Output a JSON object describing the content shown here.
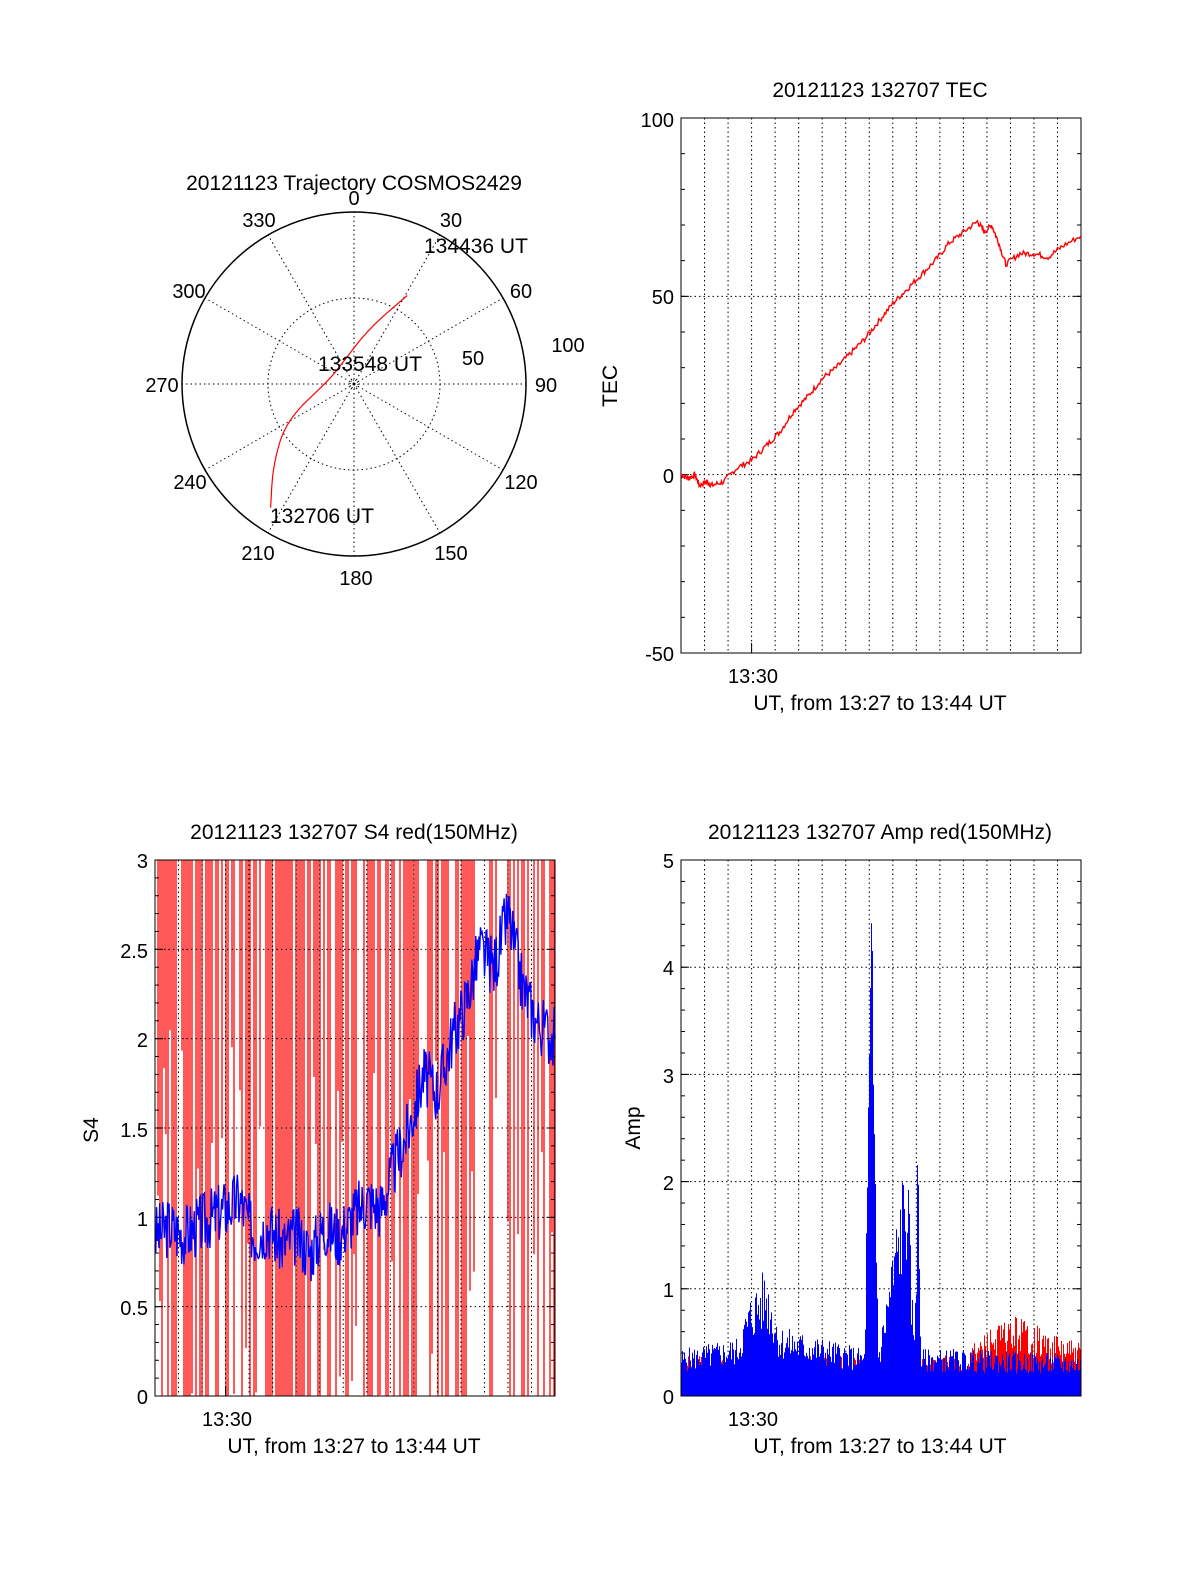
{
  "colors": {
    "red": "#ff0000",
    "blue": "#0000ff",
    "axis": "#000000",
    "grid": "#000000"
  },
  "chart_data": [
    {
      "type": "polar",
      "title": "20121123 Trajectory COSMOS2429",
      "azimuth_labels": [
        "0",
        "30",
        "60",
        "90",
        "120",
        "150",
        "180",
        "210",
        "240",
        "270",
        "300",
        "330"
      ],
      "radial_labels": [
        "50",
        "100"
      ],
      "track": {
        "color": "red",
        "points": [
          {
            "az": 214,
            "el": 12
          },
          {
            "az": 225,
            "el": 30
          },
          {
            "az": 242,
            "el": 50
          },
          {
            "az": 280,
            "el": 77
          },
          {
            "az": 335,
            "el": 77
          },
          {
            "az": 15,
            "el": 60
          },
          {
            "az": 31,
            "el": 36
          }
        ]
      },
      "annotations": [
        {
          "text": "134436 UT",
          "az": 31,
          "el": 36
        },
        {
          "text": "133548 UT",
          "az": 300,
          "el": 84
        },
        {
          "text": "132706 UT",
          "az": 214,
          "el": 12
        }
      ]
    },
    {
      "type": "line",
      "title": "20121123 132707 TEC",
      "ylabel": "TEC",
      "xlabel": "UT, from 13:27 to 13:44 UT",
      "xlim": [
        13.45,
        13.7333
      ],
      "ylim": [
        -50,
        100
      ],
      "yticks": [
        "100",
        "50",
        "0",
        "-50"
      ],
      "xtick": {
        "label": "13:30",
        "value": 13.5
      },
      "series": [
        {
          "color": "red",
          "points": [
            [
              13.45,
              0
            ],
            [
              13.455,
              -1
            ],
            [
              13.46,
              0
            ],
            [
              13.463,
              -3
            ],
            [
              13.468,
              -2
            ],
            [
              13.472,
              -3
            ],
            [
              13.48,
              -2
            ],
            [
              13.49,
              2
            ],
            [
              13.5,
              4
            ],
            [
              13.51,
              8
            ],
            [
              13.52,
              12
            ],
            [
              13.53,
              18
            ],
            [
              13.54,
              22
            ],
            [
              13.55,
              27
            ],
            [
              13.56,
              30
            ],
            [
              13.57,
              34
            ],
            [
              13.58,
              38
            ],
            [
              13.59,
              43
            ],
            [
              13.6,
              48
            ],
            [
              13.61,
              52
            ],
            [
              13.62,
              56
            ],
            [
              13.63,
              60
            ],
            [
              13.64,
              65
            ],
            [
              13.65,
              68
            ],
            [
              13.66,
              71
            ],
            [
              13.665,
              68
            ],
            [
              13.67,
              70
            ],
            [
              13.675,
              65
            ],
            [
              13.68,
              59
            ],
            [
              13.69,
              62
            ],
            [
              13.7,
              62
            ],
            [
              13.71,
              61
            ],
            [
              13.72,
              64
            ],
            [
              13.7333,
              67
            ]
          ]
        }
      ]
    },
    {
      "type": "line",
      "title": "20121123 132707 S4 red(150MHz)",
      "ylabel": "S4",
      "xlabel": "UT, from 13:27 to 13:44 UT",
      "xlim": [
        13.45,
        13.7333
      ],
      "ylim": [
        0,
        3
      ],
      "yticks": [
        "3",
        "2.5",
        "2",
        "1.5",
        "1",
        "0.5",
        "0"
      ],
      "xtick": {
        "label": "13:30",
        "value": 13.5
      },
      "series": [
        {
          "color": "red",
          "style": "dense-vertical-lines",
          "from": 13.45,
          "to": 13.7333
        },
        {
          "color": "blue",
          "points": [
            [
              13.45,
              0.9
            ],
            [
              13.46,
              0.95
            ],
            [
              13.47,
              0.9
            ],
            [
              13.48,
              0.95
            ],
            [
              13.49,
              1.0
            ],
            [
              13.5,
              1.05
            ],
            [
              13.51,
              1.1
            ],
            [
              13.52,
              0.9
            ],
            [
              13.53,
              0.95
            ],
            [
              13.54,
              0.85
            ],
            [
              13.55,
              0.9
            ],
            [
              13.56,
              0.8
            ],
            [
              13.57,
              0.95
            ],
            [
              13.58,
              0.9
            ],
            [
              13.59,
              1.0
            ],
            [
              13.6,
              1.1
            ],
            [
              13.61,
              1.05
            ],
            [
              13.62,
              1.3
            ],
            [
              13.63,
              1.5
            ],
            [
              13.64,
              1.8
            ],
            [
              13.65,
              1.7
            ],
            [
              13.66,
              2.0
            ],
            [
              13.67,
              2.2
            ],
            [
              13.68,
              2.5
            ],
            [
              13.69,
              2.4
            ],
            [
              13.7,
              2.7
            ],
            [
              13.71,
              2.3
            ],
            [
              13.72,
              2.1
            ],
            [
              13.7333,
              2.0
            ]
          ]
        }
      ]
    },
    {
      "type": "line",
      "title": "20121123 132707 Amp red(150MHz)",
      "ylabel": "Amp",
      "xlabel": "UT, from 13:27 to 13:44 UT",
      "xlim": [
        13.45,
        13.7333
      ],
      "ylim": [
        0,
        5
      ],
      "yticks": [
        "5",
        "4",
        "3",
        "2",
        "1",
        "0"
      ],
      "xtick": {
        "label": "13:30",
        "value": 13.5
      },
      "series": [
        {
          "color": "red",
          "points": [
            [
              13.45,
              0.35
            ],
            [
              13.5,
              0.3
            ],
            [
              13.55,
              0.35
            ],
            [
              13.6,
              0.35
            ],
            [
              13.65,
              0.35
            ],
            [
              13.67,
              0.6
            ],
            [
              13.69,
              0.7
            ],
            [
              13.71,
              0.55
            ],
            [
              13.7333,
              0.45
            ]
          ]
        },
        {
          "color": "blue",
          "points": [
            [
              13.45,
              0.4
            ],
            [
              13.49,
              0.5
            ],
            [
              13.5,
              0.9
            ],
            [
              13.51,
              1.1
            ],
            [
              13.52,
              0.6
            ],
            [
              13.55,
              0.5
            ],
            [
              13.58,
              0.4
            ],
            [
              13.585,
              4.5
            ],
            [
              13.59,
              0.4
            ],
            [
              13.61,
              2.2
            ],
            [
              13.615,
              0.5
            ],
            [
              13.618,
              2.4
            ],
            [
              13.62,
              0.4
            ],
            [
              13.65,
              0.4
            ],
            [
              13.7333,
              0.35
            ]
          ]
        }
      ]
    }
  ]
}
